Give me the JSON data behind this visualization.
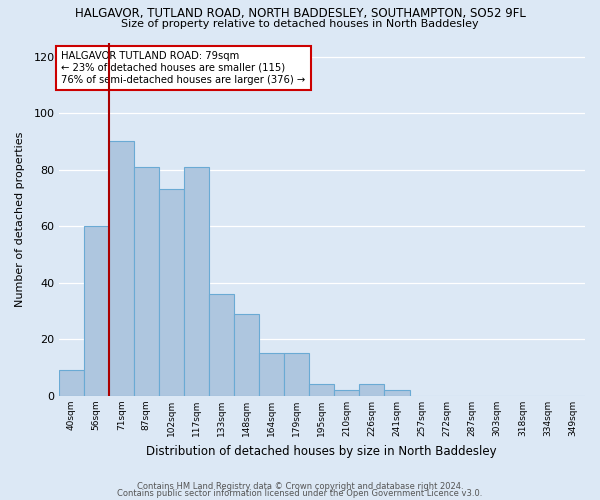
{
  "title": "HALGAVOR, TUTLAND ROAD, NORTH BADDESLEY, SOUTHAMPTON, SO52 9FL",
  "subtitle": "Size of property relative to detached houses in North Baddesley",
  "xlabel": "Distribution of detached houses by size in North Baddesley",
  "ylabel": "Number of detached properties",
  "footer1": "Contains HM Land Registry data © Crown copyright and database right 2024.",
  "footer2": "Contains public sector information licensed under the Open Government Licence v3.0.",
  "categories": [
    "40sqm",
    "56sqm",
    "71sqm",
    "87sqm",
    "102sqm",
    "117sqm",
    "133sqm",
    "148sqm",
    "164sqm",
    "179sqm",
    "195sqm",
    "210sqm",
    "226sqm",
    "241sqm",
    "257sqm",
    "272sqm",
    "287sqm",
    "303sqm",
    "318sqm",
    "334sqm",
    "349sqm"
  ],
  "values": [
    9,
    60,
    90,
    81,
    73,
    81,
    36,
    29,
    15,
    15,
    4,
    2,
    4,
    2,
    0,
    0,
    0,
    0,
    0,
    0,
    0
  ],
  "bar_color": "#aec6df",
  "bar_edge_color": "#6aaad4",
  "background_color": "#dce8f5",
  "grid_color": "#ffffff",
  "annotation_text": "HALGAVOR TUTLAND ROAD: 79sqm\n← 23% of detached houses are smaller (115)\n76% of semi-detached houses are larger (376) →",
  "vline_color": "#aa0000",
  "annotation_box_color": "#ffffff",
  "annotation_box_edge": "#cc0000",
  "ylim": [
    0,
    125
  ],
  "yticks": [
    0,
    20,
    40,
    60,
    80,
    100,
    120
  ],
  "vline_index": 1.5
}
